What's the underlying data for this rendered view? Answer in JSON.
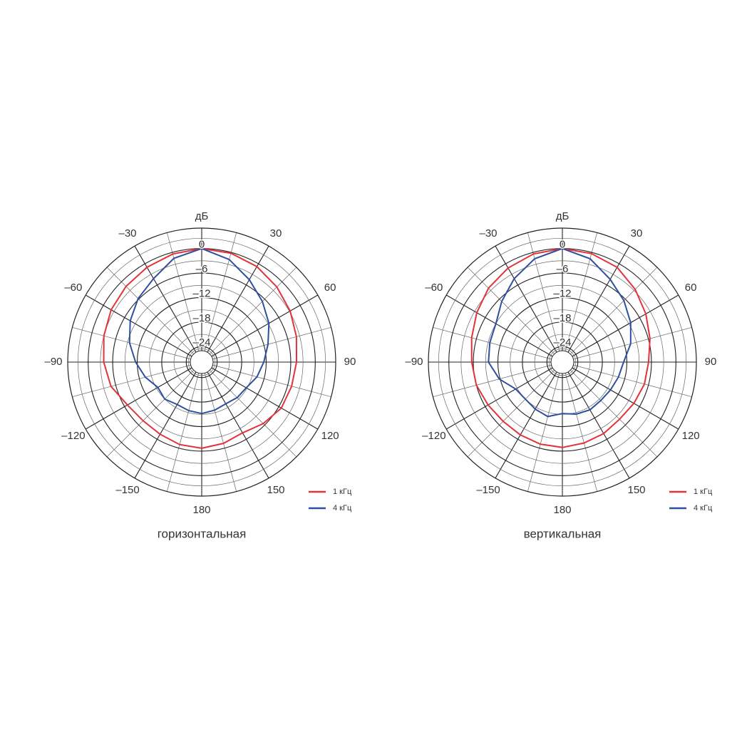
{
  "chart_data": [
    {
      "type": "polar",
      "title": "горизонтальная",
      "r_label": "дБ",
      "theta": [
        -180,
        -165,
        -150,
        -135,
        -120,
        -105,
        -90,
        -75,
        -60,
        -45,
        -30,
        -15,
        0,
        15,
        30,
        45,
        60,
        75,
        90,
        105,
        120,
        135,
        150,
        165,
        180
      ],
      "series": [
        {
          "name": "1 кГц",
          "color": "#e2333a",
          "values": [
            -6.7,
            -6.9,
            -7.4,
            -7.5,
            -6.8,
            -4.8,
            -3.8,
            -3.0,
            -2.2,
            -1.6,
            -1.0,
            -0.4,
            0,
            -0.2,
            -0.8,
            -1.8,
            -2.8,
            -3.8,
            -4.6,
            -5.0,
            -5.3,
            -6.5,
            -7.8,
            -7.2,
            -6.7
          ]
        },
        {
          "name": "4 кГц",
          "color": "#2f4f9e",
          "values": [
            -15.2,
            -15.5,
            -15.8,
            -15.0,
            -15.4,
            -13.5,
            -11.6,
            -9.5,
            -7.6,
            -5.8,
            -4.2,
            -1.5,
            0,
            -1.8,
            -4.5,
            -6.8,
            -8.8,
            -11.0,
            -12.6,
            -13.8,
            -15.2,
            -15.5,
            -16.0,
            -15.6,
            -15.2
          ]
        }
      ],
      "rlim": [
        -25,
        5
      ],
      "rticks": [
        0,
        {
          "value": -6,
          "label": "–6"
        },
        {
          "value": -12,
          "label": "–12"
        },
        {
          "value": -18,
          "label": "–18"
        },
        {
          "value": -24,
          "label": "–24"
        }
      ],
      "thetaticks": [
        {
          "value": -150,
          "label": "–150"
        },
        {
          "value": -120,
          "label": "–120"
        },
        {
          "value": -90,
          "label": "–90"
        },
        {
          "value": -60,
          "label": "–60"
        },
        {
          "value": -30,
          "label": "–30"
        },
        30,
        60,
        90,
        120,
        150,
        180
      ],
      "legend": "lower right"
    },
    {
      "type": "polar",
      "title": "вертикальная",
      "r_label": "дБ",
      "theta": [
        -180,
        -165,
        -150,
        -135,
        -120,
        -105,
        -90,
        -75,
        -60,
        -45,
        -30,
        -15,
        0,
        15,
        30,
        45,
        60,
        75,
        90,
        105,
        120,
        135,
        150,
        165,
        180
      ],
      "series": [
        {
          "name": "1 кГц",
          "color": "#e2333a",
          "values": [
            -6.9,
            -7.0,
            -7.2,
            -7.3,
            -6.8,
            -6.0,
            -5.6,
            -4.8,
            -3.6,
            -2.2,
            -1.2,
            -0.4,
            0,
            -0.3,
            -1.0,
            -2.6,
            -4.2,
            -5.6,
            -6.7,
            -7.0,
            -7.6,
            -8.0,
            -7.6,
            -7.3,
            -6.9
          ]
        },
        {
          "name": "4 кГц",
          "color": "#2f4f9e",
          "values": [
            -15.2,
            -14.0,
            -14.5,
            -15.0,
            -14.6,
            -11.8,
            -9.7,
            -9.4,
            -9.0,
            -6.8,
            -4.2,
            -1.6,
            0,
            -1.6,
            -4.4,
            -6.5,
            -8.5,
            -10.5,
            -12.8,
            -13.6,
            -14.2,
            -14.5,
            -14.3,
            -14.6,
            -15.2
          ]
        }
      ],
      "rlim": [
        -25,
        5
      ],
      "rticks": [
        0,
        {
          "value": -6,
          "label": "–6"
        },
        {
          "value": -12,
          "label": "–12"
        },
        {
          "value": -18,
          "label": "–18"
        },
        {
          "value": -24,
          "label": "–24"
        }
      ],
      "thetaticks": [
        {
          "value": -150,
          "label": "–150"
        },
        {
          "value": -120,
          "label": "–120"
        },
        {
          "value": -90,
          "label": "–90"
        },
        {
          "value": -60,
          "label": "–60"
        },
        {
          "value": -30,
          "label": "–30"
        },
        30,
        60,
        90,
        120,
        150,
        180
      ],
      "legend": "lower right"
    }
  ]
}
